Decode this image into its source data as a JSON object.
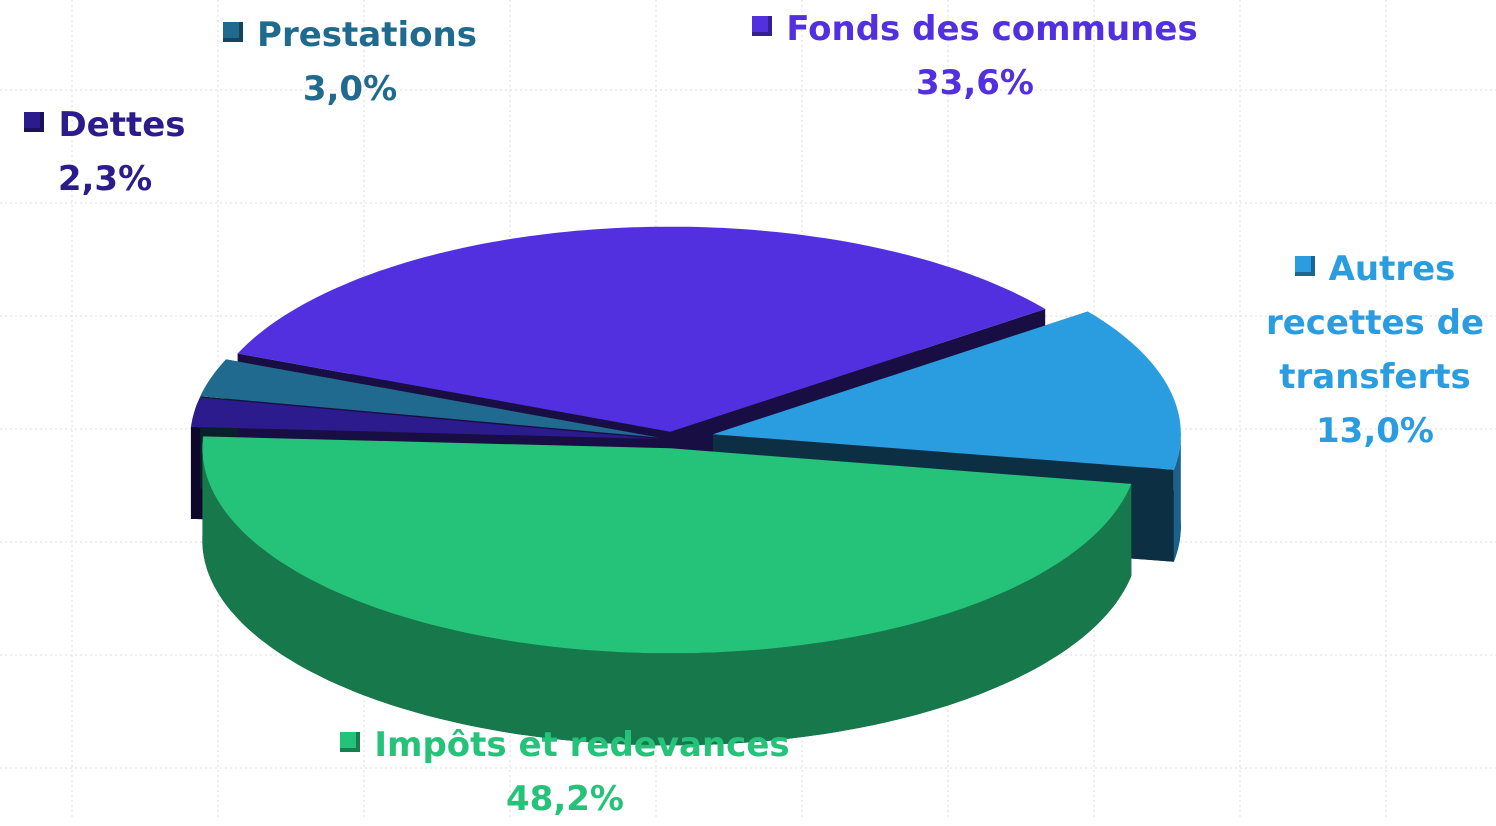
{
  "chart_data": {
    "type": "pie",
    "categories": [
      "Impôts et redevances",
      "Dettes",
      "Prestations",
      "Fonds des communes",
      "Autres recettes de transferts"
    ],
    "values": [
      48.2,
      2.3,
      3.0,
      33.6,
      13.0
    ],
    "value_labels": [
      "48,2%",
      "2,3%",
      "3,0%",
      "33,6%",
      "13,0%"
    ],
    "colors": [
      "#25c27a",
      "#2b1b8c",
      "#1f6a8e",
      "#5230e0",
      "#2a9de0"
    ]
  }
}
